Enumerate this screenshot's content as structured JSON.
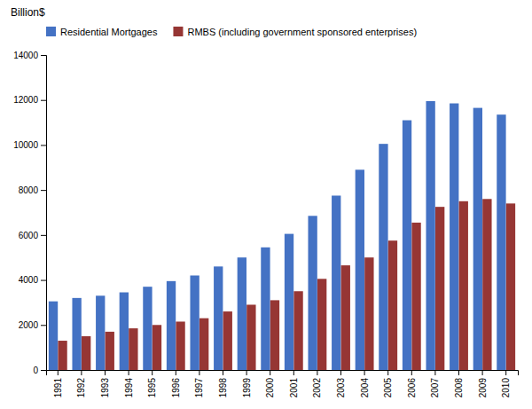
{
  "chart_data": {
    "type": "bar",
    "ylabel": "Billion$",
    "categories": [
      "1991",
      "1992",
      "1993",
      "1994",
      "1995",
      "1996",
      "1997",
      "1998",
      "1999",
      "2000",
      "2001",
      "2002",
      "2003",
      "2004",
      "2005",
      "2006",
      "2007",
      "2008",
      "2009",
      "2010"
    ],
    "series": [
      {
        "name": "Residential Mortgages",
        "color": "#4472C4",
        "values": [
          3050,
          3200,
          3300,
          3450,
          3700,
          3950,
          4200,
          4600,
          5000,
          5450,
          6050,
          6850,
          7750,
          8900,
          10050,
          11100,
          11950,
          11850,
          11650,
          11350
        ]
      },
      {
        "name": "RMBS (including government sponsored enterprises)",
        "color": "#963634",
        "values": [
          1300,
          1500,
          1700,
          1850,
          2000,
          2150,
          2300,
          2600,
          2900,
          3100,
          3500,
          4050,
          4650,
          5000,
          5750,
          6550,
          7250,
          7500,
          7600,
          7400
        ]
      }
    ],
    "ylim": [
      0,
      14000
    ],
    "yticks": [
      0,
      2000,
      4000,
      6000,
      8000,
      10000,
      12000,
      14000
    ],
    "legend": "top",
    "grid": false
  }
}
